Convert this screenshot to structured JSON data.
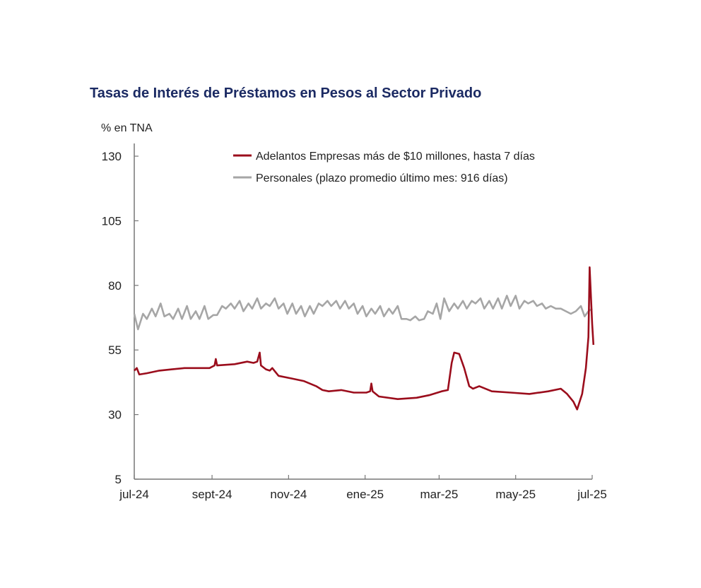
{
  "chart_data": {
    "type": "line",
    "title": "Tasas de Interés de Préstamos en Pesos al Sector Privado",
    "ylabel": "% en TNA",
    "xlabel": "",
    "ylim": [
      5,
      130
    ],
    "yticks": [
      5,
      30,
      55,
      80,
      105,
      130
    ],
    "xlim_days": [
      0,
      366
    ],
    "xticks": [
      {
        "label": "jul-24",
        "day": 0
      },
      {
        "label": "sept-24",
        "day": 62
      },
      {
        "label": "nov-24",
        "day": 123
      },
      {
        "label": "ene-25",
        "day": 184
      },
      {
        "label": "mar-25",
        "day": 243
      },
      {
        "label": "may-25",
        "day": 304
      },
      {
        "label": "jul-25",
        "day": 365
      }
    ],
    "legend_position": "top",
    "series": [
      {
        "name": "Adelantos Empresas más de $10 millones, hasta 7 días",
        "color": "#9b0d1c",
        "points": [
          [
            0,
            47
          ],
          [
            2,
            48
          ],
          [
            4,
            45.5
          ],
          [
            10,
            46
          ],
          [
            20,
            47
          ],
          [
            30,
            47.5
          ],
          [
            40,
            48
          ],
          [
            50,
            48
          ],
          [
            60,
            48
          ],
          [
            64,
            49
          ],
          [
            65,
            51.5
          ],
          [
            66,
            49
          ],
          [
            80,
            49.5
          ],
          [
            90,
            50.5
          ],
          [
            95,
            50
          ],
          [
            98,
            50.5
          ],
          [
            100,
            54
          ],
          [
            101,
            49
          ],
          [
            105,
            47.5
          ],
          [
            108,
            47
          ],
          [
            110,
            48
          ],
          [
            115,
            45
          ],
          [
            125,
            44
          ],
          [
            135,
            43
          ],
          [
            145,
            41
          ],
          [
            150,
            39.5
          ],
          [
            155,
            39
          ],
          [
            165,
            39.5
          ],
          [
            175,
            38.5
          ],
          [
            185,
            38.5
          ],
          [
            188,
            39
          ],
          [
            189,
            42
          ],
          [
            190,
            39
          ],
          [
            195,
            37
          ],
          [
            210,
            36
          ],
          [
            225,
            36.5
          ],
          [
            235,
            37.5
          ],
          [
            245,
            39
          ],
          [
            250,
            39.5
          ],
          [
            253,
            50
          ],
          [
            255,
            54
          ],
          [
            259,
            53.5
          ],
          [
            263,
            48
          ],
          [
            267,
            41
          ],
          [
            270,
            40
          ],
          [
            275,
            41
          ],
          [
            285,
            39
          ],
          [
            300,
            38.5
          ],
          [
            315,
            38
          ],
          [
            330,
            39
          ],
          [
            340,
            40
          ],
          [
            345,
            38
          ],
          [
            350,
            35
          ],
          [
            353,
            32
          ],
          [
            357,
            38
          ],
          [
            360,
            48
          ],
          [
            362,
            60
          ],
          [
            363,
            87
          ],
          [
            365,
            65
          ],
          [
            366,
            57
          ]
        ]
      },
      {
        "name": "Personales (plazo promedio último mes: 916 días)",
        "color": "#a6a6a6",
        "points": [
          [
            0,
            69
          ],
          [
            3,
            63
          ],
          [
            7,
            69
          ],
          [
            10,
            67
          ],
          [
            14,
            71
          ],
          [
            17,
            68
          ],
          [
            21,
            73
          ],
          [
            24,
            68
          ],
          [
            28,
            69
          ],
          [
            31,
            67
          ],
          [
            35,
            71
          ],
          [
            38,
            67
          ],
          [
            42,
            72
          ],
          [
            45,
            67
          ],
          [
            49,
            70
          ],
          [
            52,
            67
          ],
          [
            56,
            72
          ],
          [
            59,
            67
          ],
          [
            63,
            68.5
          ],
          [
            66,
            68.5
          ],
          [
            70,
            72
          ],
          [
            73,
            71
          ],
          [
            77,
            73
          ],
          [
            80,
            71
          ],
          [
            84,
            74
          ],
          [
            87,
            70
          ],
          [
            91,
            73
          ],
          [
            94,
            71
          ],
          [
            98,
            75
          ],
          [
            101,
            71
          ],
          [
            105,
            73
          ],
          [
            108,
            72
          ],
          [
            112,
            75
          ],
          [
            115,
            71
          ],
          [
            119,
            73
          ],
          [
            122,
            69
          ],
          [
            126,
            73
          ],
          [
            129,
            69
          ],
          [
            133,
            72
          ],
          [
            136,
            68
          ],
          [
            140,
            72
          ],
          [
            143,
            69
          ],
          [
            147,
            73
          ],
          [
            150,
            72
          ],
          [
            154,
            74
          ],
          [
            157,
            72
          ],
          [
            161,
            74
          ],
          [
            164,
            71
          ],
          [
            168,
            74
          ],
          [
            171,
            71
          ],
          [
            175,
            73
          ],
          [
            178,
            69
          ],
          [
            182,
            72
          ],
          [
            185,
            68
          ],
          [
            189,
            71
          ],
          [
            192,
            69
          ],
          [
            196,
            72
          ],
          [
            199,
            68
          ],
          [
            203,
            71
          ],
          [
            206,
            69
          ],
          [
            210,
            72
          ],
          [
            213,
            67
          ],
          [
            217,
            67
          ],
          [
            220,
            66.5
          ],
          [
            224,
            68
          ],
          [
            227,
            66.5
          ],
          [
            231,
            67
          ],
          [
            234,
            70
          ],
          [
            238,
            69
          ],
          [
            241,
            73
          ],
          [
            244,
            67
          ],
          [
            247,
            75
          ],
          [
            251,
            70
          ],
          [
            255,
            73
          ],
          [
            258,
            71
          ],
          [
            262,
            74
          ],
          [
            265,
            71
          ],
          [
            269,
            74
          ],
          [
            272,
            73
          ],
          [
            276,
            75
          ],
          [
            279,
            71
          ],
          [
            283,
            74
          ],
          [
            286,
            71
          ],
          [
            290,
            75
          ],
          [
            293,
            71
          ],
          [
            297,
            76
          ],
          [
            300,
            72
          ],
          [
            304,
            76
          ],
          [
            307,
            71
          ],
          [
            311,
            74
          ],
          [
            314,
            73
          ],
          [
            318,
            74
          ],
          [
            321,
            72
          ],
          [
            325,
            73
          ],
          [
            328,
            71
          ],
          [
            332,
            72
          ],
          [
            336,
            71
          ],
          [
            340,
            71
          ],
          [
            344,
            70
          ],
          [
            348,
            69
          ],
          [
            352,
            70
          ],
          [
            356,
            72
          ],
          [
            359,
            68
          ],
          [
            362,
            70
          ],
          [
            365,
            71
          ]
        ]
      }
    ]
  }
}
